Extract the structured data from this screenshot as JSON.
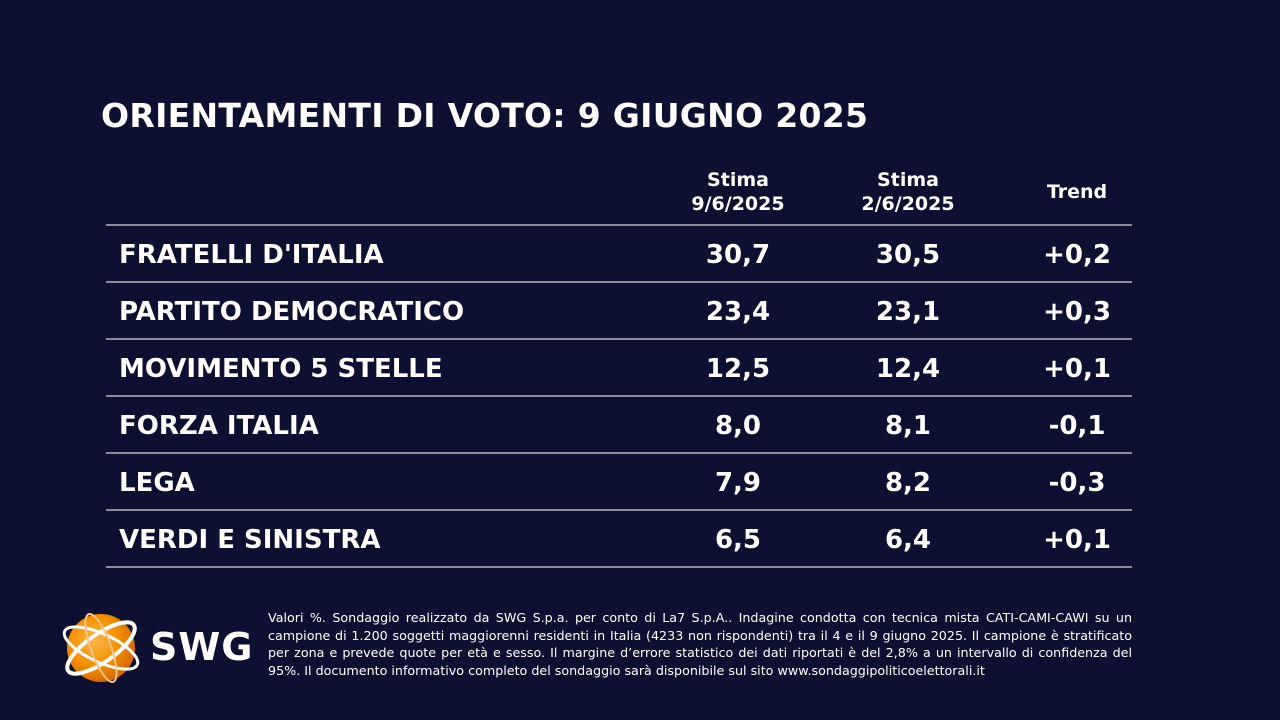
{
  "title": "ORIENTAMENTI DI VOTO: 9 GIUGNO 2025",
  "headers": {
    "col1_line1": "Stima",
    "col1_line2": "9/6/2025",
    "col2_line1": "Stima",
    "col2_line2": "2/6/2025",
    "col3": "Trend"
  },
  "chart_data": {
    "type": "table",
    "title": "ORIENTAMENTI DI VOTO: 9 GIUGNO 2025",
    "columns": [
      "Stima 9/6/2025",
      "Stima 2/6/2025",
      "Trend"
    ],
    "rows": [
      {
        "party": "FRATELLI D'ITALIA",
        "stima_current": "30,7",
        "stima_previous": "30,5",
        "trend": "+0,2"
      },
      {
        "party": "PARTITO DEMOCRATICO",
        "stima_current": "23,4",
        "stima_previous": "23,1",
        "trend": "+0,3"
      },
      {
        "party": "MOVIMENTO 5 STELLE",
        "stima_current": "12,5",
        "stima_previous": "12,4",
        "trend": "+0,1"
      },
      {
        "party": "FORZA ITALIA",
        "stima_current": "8,0",
        "stima_previous": "8,1",
        "trend": "-0,1"
      },
      {
        "party": "LEGA",
        "stima_current": "7,9",
        "stima_previous": "8,2",
        "trend": "-0,3"
      },
      {
        "party": "VERDI E SINISTRA",
        "stima_current": "6,5",
        "stima_previous": "6,4",
        "trend": "+0,1"
      }
    ]
  },
  "logo": {
    "text": "SWG",
    "icon": "globe-icon",
    "orange": "#f39200"
  },
  "note": "Valori %. Sondaggio realizzato da SWG S.p.a. per conto di La7 S.p.A.. Indagine condotta con tecnica mista CATI-CAMI-CAWI su un campione di 1.200 soggetti maggiorenni residenti in Italia (4233 non rispondenti) tra il 4 e il 9 giugno 2025. Il campione è stratificato per zona e prevede quote per età e sesso. Il margine d’errore statistico dei dati riportati è del 2,8% a un intervallo di confidenza del 95%. Il documento informativo completo del sondaggio sarà disponibile sul sito www.sondaggipoliticoelettorali.it",
  "colors": {
    "background": "#0d1030",
    "text": "#ffffff",
    "rule": "#8a8c9c"
  }
}
